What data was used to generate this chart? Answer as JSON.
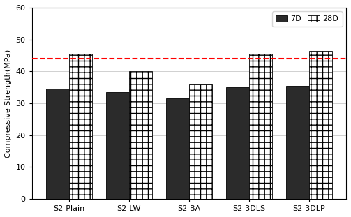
{
  "categories": [
    "S2-Plain",
    "S2-LW",
    "S2-BA",
    "S2-3DLS",
    "S2-3DLP"
  ],
  "values_7D": [
    34.5,
    33.5,
    31.5,
    35.0,
    35.5
  ],
  "values_28D": [
    45.5,
    40.0,
    36.0,
    45.5,
    46.5
  ],
  "bar_color_7D": "#2b2b2b",
  "ylabel": "Compressive Strength(MPa)",
  "ylim": [
    0,
    60
  ],
  "yticks": [
    0,
    10,
    20,
    30,
    40,
    50,
    60
  ],
  "hline_y": 44.0,
  "hline_color": "#ff0000",
  "hline_style": "--",
  "hline_lw": 1.5,
  "legend_labels": [
    "7D",
    "28D"
  ],
  "bar_width": 0.38,
  "grid_color": "#d0d0d0",
  "grid_lw": 0.7,
  "figsize": [
    5.03,
    3.11
  ],
  "dpi": 100
}
